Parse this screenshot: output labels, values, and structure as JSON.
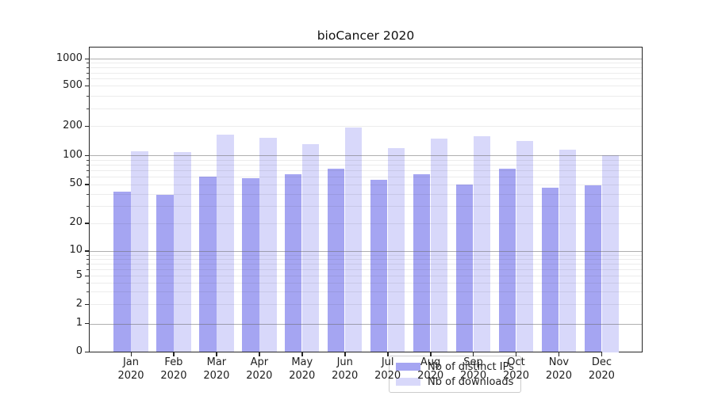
{
  "chart_data": {
    "type": "bar",
    "title": "bioCancer 2020",
    "xlabel": "",
    "ylabel": "",
    "yscale": "symlog",
    "ylim": [
      0,
      1150
    ],
    "grid": "horizontal; darker lines at decades 1/10/100/1000, light lines at other ticks and log minors",
    "legend_position": "inside axes, lower center",
    "categories": [
      "Jan 2020",
      "Feb 2020",
      "Mar 2020",
      "Apr 2020",
      "May 2020",
      "Jun 2020",
      "Jul 2020",
      "Aug 2020",
      "Sep 2020",
      "Oct 2020",
      "Nov 2020",
      "Dec 2020"
    ],
    "series": [
      {
        "name": "Nb of distinct IPs",
        "color": "#a5a5f2",
        "values": [
          42,
          39,
          60,
          58,
          64,
          72,
          56,
          63,
          50,
          73,
          46,
          49
        ]
      },
      {
        "name": "Nb of downloads",
        "color": "#d8d8fa",
        "values": [
          110,
          108,
          164,
          150,
          130,
          193,
          118,
          147,
          157,
          140,
          113,
          100
        ]
      }
    ],
    "y_tick_values": [
      0,
      1,
      2,
      5,
      10,
      20,
      50,
      100,
      200,
      500,
      1000
    ],
    "y_major_grid_values": [
      1,
      10,
      100,
      1000
    ],
    "y_light_grid_values": [
      2,
      5,
      20,
      50,
      200,
      500
    ],
    "y_minor_tick_values": [
      3,
      4,
      6,
      7,
      8,
      9,
      30,
      40,
      60,
      70,
      80,
      90,
      300,
      400,
      600,
      700,
      800,
      900
    ]
  },
  "colors": {
    "grid_major": "#b0b0b0",
    "grid_minor": "#ececec",
    "spine": "#262626",
    "text": "#202020",
    "legend_border": "#cccccc",
    "legend_background": "rgba(255,255,255,0.8)"
  }
}
